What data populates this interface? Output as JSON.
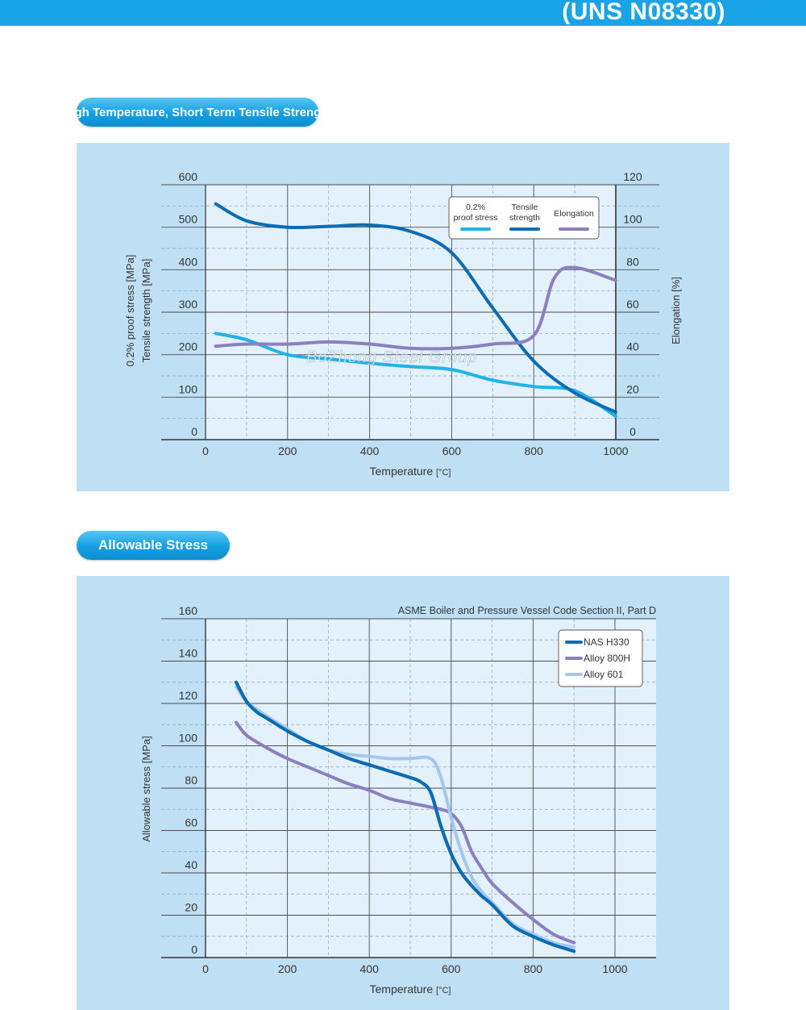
{
  "header": {
    "title": "(UNS N08330)"
  },
  "section1": {
    "label": "High Temperature, Short Term Tensile Strength"
  },
  "section2": {
    "label": "Allowable Stress"
  },
  "watermark": "BoZhong Steel Group",
  "chart_data": [
    {
      "type": "line",
      "title": "",
      "xlabel": "Temperature",
      "xunit": "[°C]",
      "ylabel": [
        "0.2% proof stress [MPa]",
        "Tensile strength [MPa]"
      ],
      "y2label": "Elongation [%]",
      "xlim": [
        0,
        1000
      ],
      "ylim": [
        0,
        600
      ],
      "y2lim": [
        0,
        120
      ],
      "x_ticks": [
        "0",
        "200",
        "400",
        "600",
        "800",
        "1000"
      ],
      "y_ticks": [
        "0",
        "100",
        "200",
        "300",
        "400",
        "500",
        "600"
      ],
      "y2_ticks": [
        "0",
        "20",
        "40",
        "60",
        "80",
        "100",
        "120"
      ],
      "grid": true,
      "legend_position": "top-right",
      "series": [
        {
          "name": "0.2% proof stress",
          "legend": [
            "0.2%",
            "proof stress"
          ],
          "axis": "left",
          "color": "#1fb3e8",
          "x": [
            25,
            100,
            200,
            300,
            400,
            500,
            600,
            700,
            800,
            900,
            1000
          ],
          "values": [
            250,
            235,
            200,
            190,
            180,
            172,
            165,
            140,
            125,
            115,
            55
          ]
        },
        {
          "name": "Tensile strength",
          "legend": [
            "Tensile",
            "strength"
          ],
          "axis": "left",
          "color": "#0b6cb4",
          "x": [
            25,
            100,
            200,
            300,
            400,
            500,
            600,
            700,
            800,
            900,
            1000
          ],
          "values": [
            555,
            515,
            500,
            502,
            505,
            490,
            440,
            310,
            185,
            110,
            65
          ]
        },
        {
          "name": "Elongation",
          "legend": [
            "Elongation"
          ],
          "axis": "right",
          "color": "#8b7fc0",
          "x": [
            25,
            100,
            200,
            300,
            400,
            500,
            600,
            700,
            800,
            850,
            900,
            1000
          ],
          "values": [
            44,
            45,
            45,
            46,
            45,
            43,
            43,
            45,
            49,
            76,
            81,
            75
          ]
        }
      ]
    },
    {
      "type": "line",
      "title": "",
      "annotation": "ASME Boiler and Pressure Vessel Code Section II, Part D",
      "xlabel": "Temperature",
      "xunit": "[°C]",
      "ylabel": "Allowable stress [MPa]",
      "xlim": [
        0,
        1000
      ],
      "ylim": [
        0,
        160
      ],
      "x_ticks": [
        "0",
        "200",
        "400",
        "600",
        "800",
        "1000"
      ],
      "y_ticks": [
        "0",
        "20",
        "40",
        "60",
        "80",
        "100",
        "120",
        "140",
        "160"
      ],
      "grid": true,
      "legend_position": "top-right",
      "series": [
        {
          "name": "NAS H330",
          "color": "#0b6cb4",
          "x": [
            75,
            100,
            125,
            150,
            200,
            250,
            300,
            350,
            400,
            450,
            500,
            525,
            550,
            575,
            600,
            625,
            650,
            675,
            700,
            750,
            800,
            850,
            900
          ],
          "values": [
            130,
            121,
            116,
            113,
            107,
            102,
            98,
            94,
            91,
            88,
            85,
            83,
            78,
            62,
            49,
            40,
            34,
            29,
            25,
            15,
            10,
            6,
            3
          ]
        },
        {
          "name": "Alloy 800H",
          "color": "#8b7fc0",
          "x": [
            75,
            100,
            150,
            200,
            250,
            300,
            350,
            400,
            450,
            500,
            550,
            575,
            600,
            625,
            650,
            675,
            700,
            750,
            800,
            850,
            900
          ],
          "values": [
            111,
            105,
            99,
            94,
            90,
            86,
            82,
            79,
            75,
            73,
            71,
            70,
            68,
            62,
            50,
            42,
            35,
            26,
            18,
            11,
            7
          ]
        },
        {
          "name": "Alloy 601",
          "color": "#a3c7ec",
          "x": [
            75,
            100,
            150,
            200,
            250,
            300,
            350,
            400,
            450,
            500,
            550,
            575,
            600,
            625,
            650,
            675,
            700,
            750,
            800,
            850,
            900
          ],
          "values": [
            128,
            121,
            114,
            108,
            102,
            98,
            96,
            95,
            94,
            94,
            94,
            85,
            66,
            50,
            38,
            31,
            26,
            16,
            11,
            7,
            5
          ]
        }
      ]
    }
  ]
}
